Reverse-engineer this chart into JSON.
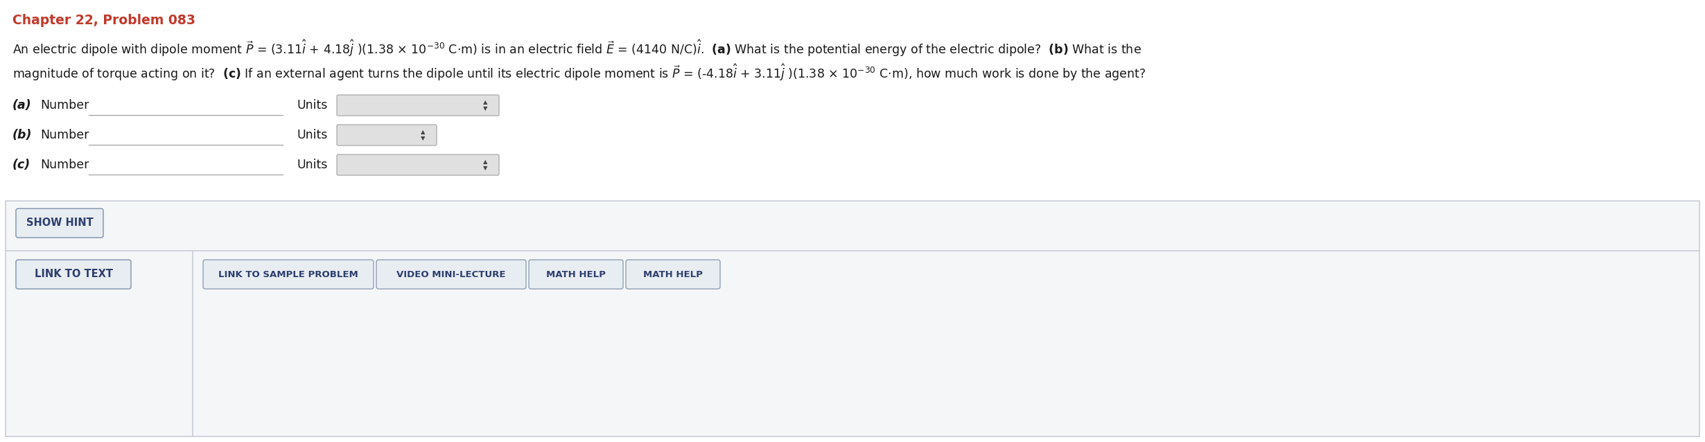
{
  "title": "Chapter 22, Problem 083",
  "title_color": "#c0392b",
  "bg_color": "#ffffff",
  "border_color": "#c8cdd4",
  "line1_text": "An electric dipole with dipole moment $\\vec{P}$ = (3.11$\\hat{i}$ + 4.18$\\hat{j}$ )(1.38 × 10$^{-30}$ C·m) is in an electric field $\\vec{E}$ = (4140 N/C)$\\hat{i}$.  $\\mathbf{(a)}$ What is the potential energy of the electric dipole?  $\\mathbf{(b)}$ What is the",
  "line2_text": "magnitude of torque acting on it?  $\\mathbf{(c)}$ If an external agent turns the dipole until its electric dipole moment is $\\vec{P}$ = (-4.18$\\hat{i}$ + 3.11$\\hat{j}$ )(1.38 × 10$^{-30}$ C·m), how much work is done by the agent?",
  "label_a": "(a)",
  "label_b": "(b)",
  "label_c": "(c)",
  "number_label": "Number",
  "units_label": "Units",
  "show_hint": "SHOW HINT",
  "link_to_text": "LINK TO TEXT",
  "btn1": "LINK TO SAMPLE PROBLEM",
  "btn2": "VIDEO MINI-LECTURE",
  "btn3": "MATH HELP",
  "btn4": "MATH HELP",
  "text_color": "#1a1a1a",
  "button_text_color": "#2c3e6e",
  "button_bg": "#e8edf2",
  "button_border": "#8fa0b4",
  "panel_bg": "#f5f6f8",
  "input_line_color": "#999999"
}
